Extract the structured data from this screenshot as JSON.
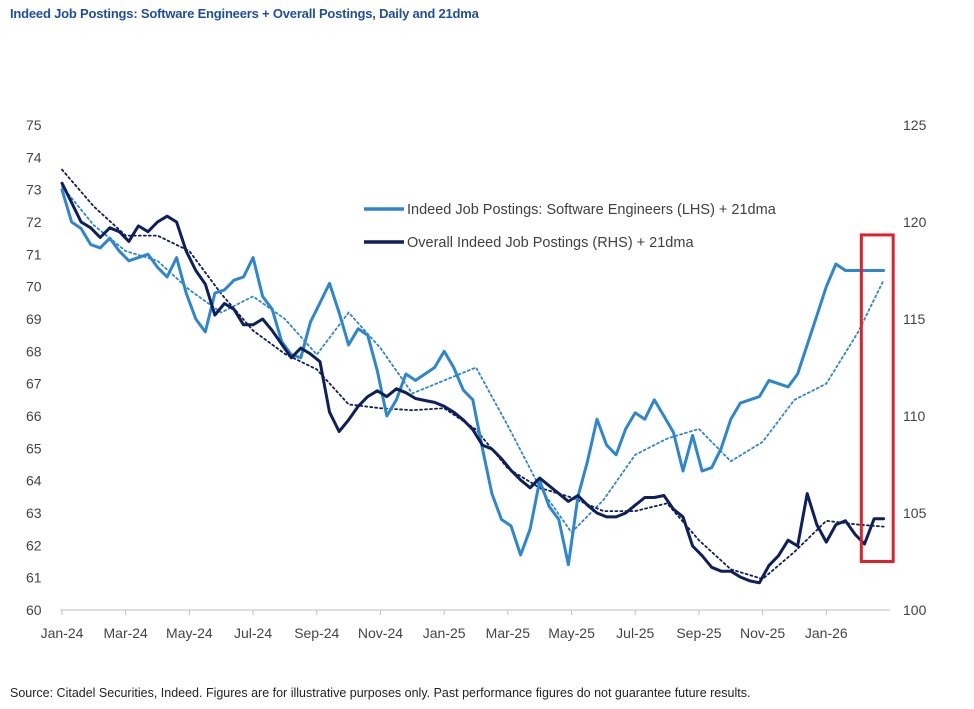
{
  "title": "Indeed Job Postings: Software Engineers + Overall Postings, Daily and 21dma",
  "source": "Source: Citadel Securities, Indeed. Figures are for illustrative purposes only. Past performance figures do not guarantee future results.",
  "colors": {
    "software": "#2f86d0",
    "overall": "#0d1f5c",
    "highlight": "#e0202a",
    "tick": "#444444"
  },
  "chart_data": {
    "type": "line",
    "title": "Indeed Job Postings: Software Engineers + Overall Postings, Daily and 21dma",
    "x_labels": [
      "Jan-24",
      "Mar-24",
      "May-24",
      "Jul-24",
      "Sep-24",
      "Nov-24",
      "Jan-25",
      "Mar-25",
      "May-25",
      "Jul-25",
      "Sep-25",
      "Nov-25",
      "Jan-26"
    ],
    "x_range_months": [
      0,
      26
    ],
    "y_left": {
      "min": 60,
      "max": 75,
      "ticks": [
        "60",
        "61",
        "62",
        "63",
        "64",
        "65",
        "66",
        "67",
        "68",
        "69",
        "70",
        "71",
        "72",
        "73",
        "74",
        "75"
      ]
    },
    "y_right": {
      "min": 100,
      "max": 125,
      "ticks": [
        "100",
        "105",
        "110",
        "115",
        "120",
        "125"
      ]
    },
    "legend": [
      {
        "label": "Indeed Job Postings: Software Engineers (LHS) + 21dma",
        "color": "#2f86d0"
      },
      {
        "label": "Overall Indeed Job Postings (RHS) + 21dma",
        "color": "#0d1f5c"
      }
    ],
    "highlight": {
      "x_start_month": 25.1,
      "x_end_month": 26.1,
      "y_left_min": 61.5,
      "y_left_max": 71.6
    },
    "series": [
      {
        "name": "Indeed Job Postings: Software Engineers (LHS)",
        "axis": "left",
        "x": [
          0,
          0.3,
          0.6,
          0.9,
          1.2,
          1.5,
          1.8,
          2.1,
          2.4,
          2.7,
          3.0,
          3.3,
          3.6,
          3.9,
          4.2,
          4.5,
          4.8,
          5.1,
          5.4,
          5.7,
          6.0,
          6.3,
          6.6,
          6.9,
          7.2,
          7.5,
          7.8,
          8.1,
          8.4,
          8.7,
          9.0,
          9.3,
          9.6,
          9.9,
          10.2,
          10.5,
          10.8,
          11.1,
          11.4,
          11.7,
          12.0,
          12.3,
          12.6,
          12.9,
          13.2,
          13.5,
          13.8,
          14.1,
          14.4,
          14.7,
          15.0,
          15.3,
          15.6,
          15.9,
          16.2,
          16.5,
          16.8,
          17.1,
          17.4,
          17.7,
          18.0,
          18.3,
          18.6,
          18.9,
          19.2,
          19.5,
          19.8,
          20.1,
          20.4,
          20.7,
          21.0,
          21.3,
          21.6,
          21.9,
          22.2,
          22.5,
          22.8,
          23.1,
          23.4,
          23.7,
          24.0,
          24.3,
          24.6,
          24.9,
          25.2,
          25.5,
          25.8
        ],
        "values": [
          73.0,
          72.0,
          71.8,
          71.3,
          71.2,
          71.5,
          71.1,
          70.8,
          70.9,
          71.0,
          70.6,
          70.3,
          70.9,
          69.8,
          69.0,
          68.6,
          69.8,
          69.9,
          70.2,
          70.3,
          70.9,
          69.7,
          69.3,
          68.3,
          67.9,
          67.8,
          68.9,
          69.5,
          70.1,
          69.2,
          68.2,
          68.7,
          68.5,
          67.4,
          66.0,
          66.5,
          67.3,
          67.1,
          67.3,
          67.5,
          68.0,
          67.5,
          66.8,
          66.5,
          65.0,
          63.6,
          62.8,
          62.6,
          61.7,
          62.5,
          64.0,
          63.2,
          62.8,
          61.4,
          63.5,
          64.6,
          65.9,
          65.1,
          64.8,
          65.6,
          66.1,
          65.9,
          66.5,
          66.0,
          65.5,
          64.3,
          65.4,
          64.3,
          64.4,
          65.0,
          65.9,
          66.4,
          66.5,
          66.6,
          67.1,
          67.0,
          66.9,
          67.3,
          68.2,
          69.1,
          70.0,
          70.7,
          70.5,
          70.5,
          70.5,
          70.5,
          70.5
        ]
      },
      {
        "name": "Overall Indeed Job Postings (RHS)",
        "axis": "right",
        "x": [
          0,
          0.3,
          0.6,
          0.9,
          1.2,
          1.5,
          1.8,
          2.1,
          2.4,
          2.7,
          3.0,
          3.3,
          3.6,
          3.9,
          4.2,
          4.5,
          4.8,
          5.1,
          5.4,
          5.7,
          6.0,
          6.3,
          6.6,
          6.9,
          7.2,
          7.5,
          7.8,
          8.1,
          8.4,
          8.7,
          9.0,
          9.3,
          9.6,
          9.9,
          10.2,
          10.5,
          10.8,
          11.1,
          11.4,
          11.7,
          12.0,
          12.3,
          12.6,
          12.9,
          13.2,
          13.5,
          13.8,
          14.1,
          14.4,
          14.7,
          15.0,
          15.3,
          15.6,
          15.9,
          16.2,
          16.5,
          16.8,
          17.1,
          17.4,
          17.7,
          18.0,
          18.3,
          18.6,
          18.9,
          19.2,
          19.5,
          19.8,
          20.1,
          20.4,
          20.7,
          21.0,
          21.3,
          21.6,
          21.9,
          22.2,
          22.5,
          22.8,
          23.1,
          23.4,
          23.7,
          24.0,
          24.3,
          24.6,
          24.9,
          25.2,
          25.5,
          25.8
        ],
        "values": [
          122.0,
          121.0,
          120.0,
          119.7,
          119.2,
          119.7,
          119.5,
          119.0,
          119.8,
          119.5,
          120.0,
          120.3,
          120.0,
          118.5,
          117.5,
          116.8,
          115.2,
          115.8,
          115.5,
          114.7,
          114.7,
          115.0,
          114.4,
          113.7,
          113.0,
          113.5,
          113.2,
          112.8,
          110.2,
          109.2,
          109.8,
          110.5,
          111.0,
          111.3,
          111.0,
          111.4,
          111.2,
          110.9,
          110.8,
          110.7,
          110.5,
          110.2,
          109.8,
          109.3,
          108.5,
          108.3,
          107.8,
          107.2,
          106.7,
          106.3,
          106.8,
          106.4,
          106.0,
          105.6,
          105.9,
          105.4,
          105.0,
          104.8,
          104.8,
          105.0,
          105.4,
          105.8,
          105.8,
          105.9,
          105.2,
          104.8,
          103.3,
          102.8,
          102.2,
          102.0,
          102.0,
          101.7,
          101.5,
          101.4,
          102.3,
          102.8,
          103.6,
          103.3,
          106.0,
          104.4,
          103.5,
          104.4,
          104.6,
          103.9,
          103.4,
          104.7,
          104.7
        ]
      },
      {
        "name": "Software Engineers 21dma",
        "axis": "left",
        "x": [
          0,
          1,
          2,
          3,
          4,
          5,
          6,
          7,
          8,
          9,
          10,
          11,
          12,
          13,
          14,
          15,
          16,
          17,
          18,
          19,
          20,
          21,
          22,
          23,
          24,
          25,
          25.8
        ],
        "values": [
          73.1,
          71.9,
          71.1,
          70.8,
          69.9,
          69.2,
          69.7,
          69.0,
          67.9,
          69.2,
          68.1,
          66.7,
          67.1,
          67.5,
          65.7,
          63.8,
          62.4,
          63.4,
          64.8,
          65.3,
          65.6,
          64.6,
          65.2,
          66.5,
          67.0,
          68.6,
          70.2
        ]
      },
      {
        "name": "Overall 21dma",
        "axis": "right",
        "x": [
          0,
          1,
          2,
          3,
          4,
          5,
          6,
          7,
          8,
          9,
          10,
          11,
          12,
          13,
          14,
          15,
          16,
          17,
          18,
          19,
          20,
          21,
          22,
          23,
          24,
          25,
          25.8
        ],
        "values": [
          122.7,
          120.8,
          119.3,
          119.3,
          118.5,
          116.3,
          114.4,
          113.2,
          112.4,
          110.6,
          110.4,
          110.3,
          110.4,
          109.3,
          107.3,
          106.3,
          105.8,
          105.1,
          105.1,
          105.5,
          103.6,
          102.1,
          101.6,
          103.0,
          104.6,
          104.4,
          104.3
        ]
      }
    ]
  }
}
